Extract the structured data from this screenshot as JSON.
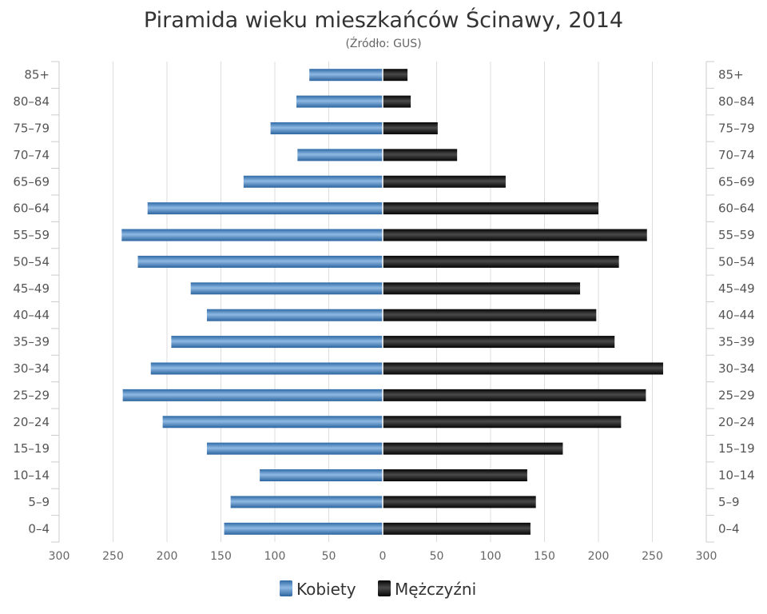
{
  "chart_data": {
    "type": "bar",
    "orientation": "horizontal",
    "title": "Piramida wieku mieszkańców Ścinawy, 2014",
    "subtitle": "(Źródło: GUS)",
    "categories": [
      "0–4",
      "5–9",
      "10–14",
      "15–19",
      "20–24",
      "25–29",
      "30–34",
      "35–39",
      "40–44",
      "45–49",
      "50–54",
      "55–59",
      "60–64",
      "65–69",
      "70–74",
      "75–79",
      "80–84",
      "85+"
    ],
    "series": [
      {
        "name": "Kobiety",
        "side": "left",
        "color": "#3d7fbf",
        "values": [
          147,
          141,
          114,
          163,
          204,
          241,
          215,
          196,
          163,
          178,
          227,
          242,
          218,
          129,
          79,
          104,
          80,
          68
        ]
      },
      {
        "name": "Mężczyźni",
        "side": "right",
        "color": "#1a1a1a",
        "values": [
          137,
          142,
          134,
          167,
          221,
          244,
          260,
          215,
          198,
          183,
          219,
          245,
          200,
          114,
          69,
          51,
          26,
          23
        ]
      }
    ],
    "x_ticks": [
      "300",
      "250",
      "200",
      "150",
      "100",
      "50",
      "0",
      "50",
      "100",
      "150",
      "200",
      "250",
      "300"
    ],
    "xlim": [
      -300,
      300
    ],
    "grid": true,
    "legend_position": "bottom"
  }
}
